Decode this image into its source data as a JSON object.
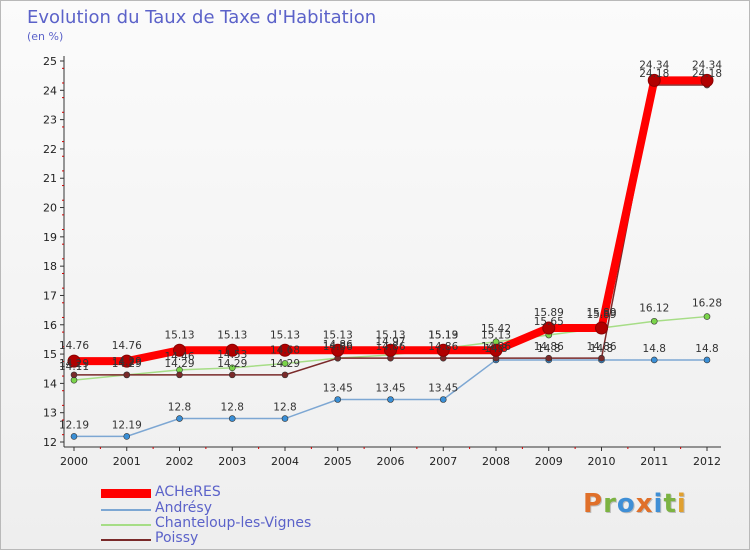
{
  "title": "Evolution du Taux de Taxe d'Habitation",
  "subtitle": "(en %)",
  "logo_text": "Proxiti",
  "chart_data": {
    "type": "line",
    "title": "Evolution du Taux de Taxe d'Habitation",
    "ylabel": "(en %)",
    "xlabel": "",
    "x": [
      "2000",
      "2001",
      "2002",
      "2003",
      "2004",
      "2005",
      "2006",
      "2007",
      "2008",
      "2009",
      "2010",
      "2011",
      "2012"
    ],
    "ylim": [
      12,
      25
    ],
    "yticks": [
      12,
      13,
      14,
      15,
      16,
      17,
      18,
      19,
      20,
      21,
      22,
      23,
      24,
      25
    ],
    "grid": false,
    "legend_position": "bottom-left",
    "series": [
      {
        "name": "ACHeRES",
        "color": "#ff0000",
        "marker": "#b10000",
        "values": [
          14.76,
          14.76,
          15.13,
          15.13,
          15.13,
          15.13,
          15.13,
          15.13,
          15.13,
          15.89,
          15.89,
          24.34,
          24.34
        ],
        "labels": [
          "14.76",
          "14.76",
          "15.13",
          "15.13",
          "15.13",
          "15.13",
          "15.13",
          "15.13",
          "15.13",
          "15.89",
          "15.89",
          "24.34",
          "24.34"
        ]
      },
      {
        "name": "Andrésy",
        "color": "#7da7d3",
        "marker": "#3a8fd6",
        "values": [
          12.19,
          12.19,
          12.8,
          12.8,
          12.8,
          13.45,
          13.45,
          13.45,
          14.8,
          14.8,
          14.8,
          14.8,
          14.8
        ],
        "labels": [
          "12.19",
          "12.19",
          "12.8",
          "12.8",
          "12.8",
          "13.45",
          "13.45",
          "13.45",
          "14.8",
          "14.8",
          "14.8",
          "14.8",
          "14.8"
        ]
      },
      {
        "name": "Chanteloup-les-Vignes",
        "color": "#a6dd86",
        "marker": "#7ad44a",
        "values": [
          14.11,
          14.29,
          14.46,
          14.53,
          14.68,
          14.86,
          14.97,
          15.19,
          15.42,
          15.65,
          15.89,
          16.12,
          16.28
        ],
        "labels": [
          "14.11",
          "14.29",
          "14.46",
          "14.53",
          "14.68",
          "14.86",
          "14.97",
          "15.19",
          "15.42",
          "15.65",
          "15.89",
          "16.12",
          "16.28"
        ]
      },
      {
        "name": "Poissy",
        "color": "#7a2a2a",
        "marker": "#7a2a2a",
        "values": [
          14.29,
          14.29,
          14.29,
          14.29,
          14.29,
          14.86,
          14.86,
          14.86,
          14.86,
          14.86,
          14.86,
          24.18,
          24.18
        ],
        "labels": [
          "14.29",
          "14.29",
          "14.29",
          "14.29",
          "14.29",
          "14.86",
          "14.86",
          "14.86",
          "14.86",
          "14.86",
          "14.86",
          "24.18",
          "24.18"
        ]
      }
    ]
  }
}
